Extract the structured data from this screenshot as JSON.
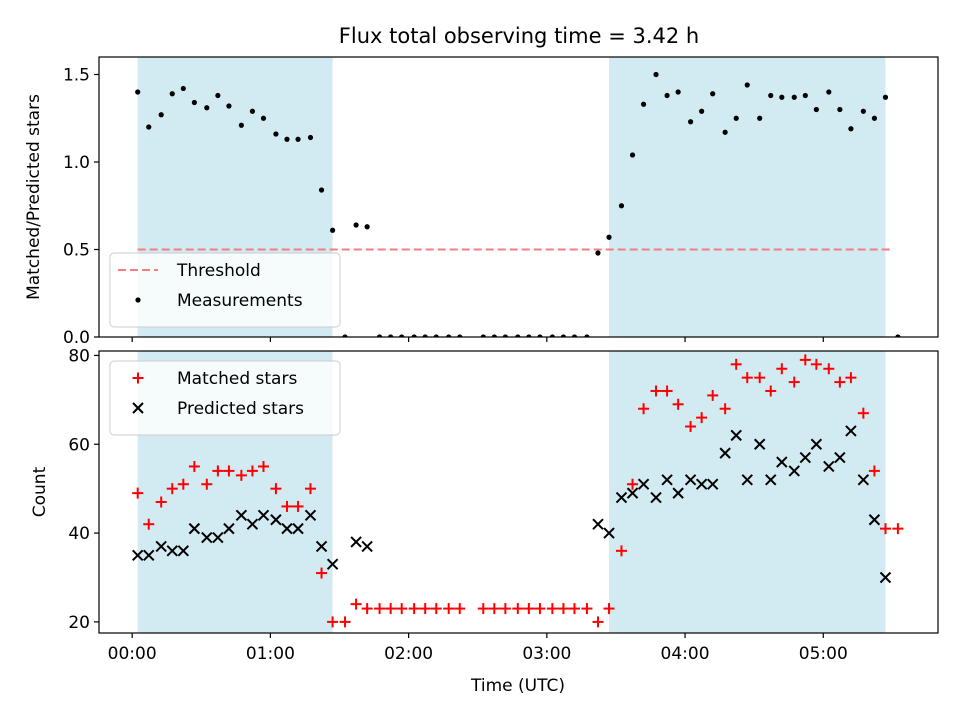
{
  "title": "Flux total observing time = 3.42 h",
  "xlabel": "Time (UTC)",
  "colors": {
    "shade": "#add8e6",
    "threshold": "#f08080",
    "measurement": "#000000",
    "matched": "#ff0000",
    "predicted": "#000000"
  },
  "chart_data": [
    {
      "type": "scatter",
      "ylabel": "Matched/Predicted stars",
      "ylim": [
        0,
        1.6
      ],
      "yticks": [
        0.0,
        0.5,
        1.0,
        1.5
      ],
      "ytick_labels": [
        "0.0",
        "0.5",
        "1.0",
        "1.5"
      ],
      "xlim": [
        -0.24,
        5.83
      ],
      "xticks": [
        0,
        1,
        2,
        3,
        4,
        5
      ],
      "xtick_labels": [
        "00:00",
        "01:00",
        "02:00",
        "03:00",
        "04:00",
        "05:00"
      ],
      "shaded_ranges": [
        [
          0.04,
          1.45
        ],
        [
          3.45,
          5.45
        ]
      ],
      "threshold": {
        "y": 0.5,
        "x_range": [
          0.04,
          5.5
        ],
        "name": "Threshold",
        "style": "dashed"
      },
      "legend": "lower-left",
      "series": [
        {
          "name": "Measurements",
          "marker": "dot",
          "x": [
            0.04,
            0.12,
            0.21,
            0.29,
            0.37,
            0.45,
            0.54,
            0.62,
            0.7,
            0.79,
            0.87,
            0.95,
            1.04,
            1.12,
            1.2,
            1.29,
            1.37,
            1.45,
            1.54,
            1.62,
            1.7,
            1.79,
            1.87,
            1.95,
            2.04,
            2.12,
            2.2,
            2.29,
            2.37,
            2.54,
            2.62,
            2.7,
            2.79,
            2.87,
            2.95,
            3.04,
            3.12,
            3.2,
            3.29,
            3.37,
            3.45,
            3.54,
            3.62,
            3.7,
            3.79,
            3.87,
            3.95,
            4.04,
            4.12,
            4.2,
            4.29,
            4.37,
            4.45,
            4.54,
            4.62,
            4.7,
            4.79,
            4.87,
            4.95,
            5.04,
            5.12,
            5.2,
            5.29,
            5.37,
            5.45,
            5.54
          ],
          "y": [
            1.4,
            1.2,
            1.27,
            1.39,
            1.42,
            1.34,
            1.31,
            1.38,
            1.32,
            1.21,
            1.29,
            1.25,
            1.16,
            1.13,
            1.13,
            1.14,
            0.84,
            0.61,
            0.0,
            0.64,
            0.63,
            0.0,
            0.0,
            0.0,
            0.0,
            0.0,
            0.0,
            0.0,
            0.0,
            0.0,
            0.0,
            0.0,
            0.0,
            0.0,
            0.0,
            0.0,
            0.0,
            0.0,
            0.0,
            0.48,
            0.57,
            0.75,
            1.04,
            1.33,
            1.5,
            1.38,
            1.4,
            1.23,
            1.29,
            1.39,
            1.17,
            1.25,
            1.44,
            1.25,
            1.38,
            1.37,
            1.37,
            1.38,
            1.3,
            1.4,
            1.3,
            1.19,
            1.29,
            1.25,
            1.37,
            0.0
          ]
        }
      ]
    },
    {
      "type": "scatter",
      "ylabel": "Count",
      "ylim": [
        17.5,
        81
      ],
      "yticks": [
        20,
        40,
        60,
        80
      ],
      "ytick_labels": [
        "20",
        "40",
        "60",
        "80"
      ],
      "xlim": [
        -0.24,
        5.83
      ],
      "xticks": [
        0,
        1,
        2,
        3,
        4,
        5
      ],
      "xtick_labels": [
        "00:00",
        "01:00",
        "02:00",
        "03:00",
        "04:00",
        "05:00"
      ],
      "shaded_ranges": [
        [
          0.04,
          1.45
        ],
        [
          3.45,
          5.45
        ]
      ],
      "legend": "upper-left",
      "series": [
        {
          "name": "Matched stars",
          "marker": "plus",
          "x": [
            0.04,
            0.12,
            0.21,
            0.29,
            0.37,
            0.45,
            0.54,
            0.62,
            0.7,
            0.79,
            0.87,
            0.95,
            1.04,
            1.12,
            1.2,
            1.29,
            1.37,
            1.45,
            1.54,
            1.62,
            1.7,
            1.79,
            1.87,
            1.95,
            2.04,
            2.12,
            2.2,
            2.29,
            2.37,
            2.54,
            2.62,
            2.7,
            2.79,
            2.87,
            2.95,
            3.04,
            3.12,
            3.2,
            3.29,
            3.37,
            3.45,
            3.54,
            3.62,
            3.7,
            3.79,
            3.87,
            3.95,
            4.04,
            4.12,
            4.2,
            4.29,
            4.37,
            4.45,
            4.54,
            4.62,
            4.7,
            4.79,
            4.87,
            4.95,
            5.04,
            5.12,
            5.2,
            5.29,
            5.37,
            5.45,
            5.54
          ],
          "y": [
            49,
            42,
            47,
            50,
            51,
            55,
            51,
            54,
            54,
            53,
            54,
            55,
            50,
            46,
            46,
            50,
            31,
            20,
            20,
            24,
            23,
            23,
            23,
            23,
            23,
            23,
            23,
            23,
            23,
            23,
            23,
            23,
            23,
            23,
            23,
            23,
            23,
            23,
            23,
            20,
            23,
            36,
            51,
            68,
            72,
            72,
            69,
            64,
            66,
            71,
            68,
            78,
            75,
            75,
            72,
            77,
            74,
            79,
            78,
            77,
            74,
            75,
            67,
            54,
            41,
            41
          ]
        },
        {
          "name": "Predicted stars",
          "marker": "x",
          "x": [
            0.04,
            0.12,
            0.21,
            0.29,
            0.37,
            0.45,
            0.54,
            0.62,
            0.7,
            0.79,
            0.87,
            0.95,
            1.04,
            1.12,
            1.2,
            1.29,
            1.37,
            1.45,
            1.62,
            1.7,
            3.37,
            3.45,
            3.54,
            3.62,
            3.7,
            3.79,
            3.87,
            3.95,
            4.04,
            4.12,
            4.2,
            4.29,
            4.37,
            4.45,
            4.54,
            4.62,
            4.7,
            4.79,
            4.87,
            4.95,
            5.04,
            5.12,
            5.2,
            5.29,
            5.37,
            5.45
          ],
          "y": [
            35,
            35,
            37,
            36,
            36,
            41,
            39,
            39,
            41,
            44,
            42,
            44,
            43,
            41,
            41,
            44,
            37,
            33,
            38,
            37,
            42,
            40,
            48,
            49,
            51,
            48,
            52,
            49,
            52,
            51,
            51,
            58,
            62,
            52,
            60,
            52,
            56,
            54,
            57,
            60,
            55,
            57,
            63,
            52,
            43,
            30
          ]
        }
      ]
    }
  ]
}
